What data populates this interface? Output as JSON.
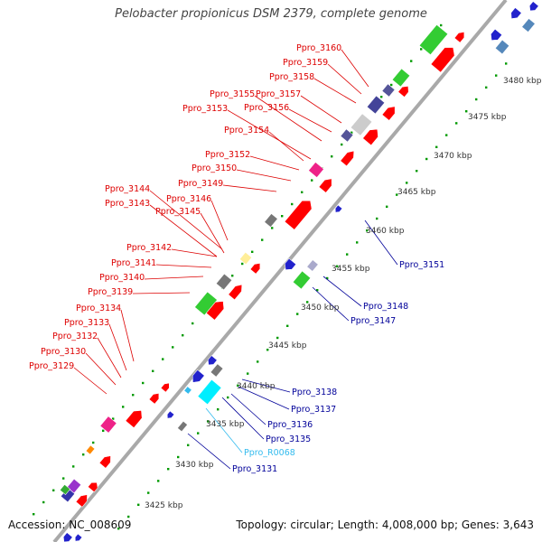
{
  "title": "Pelobacter propionicus DSM 2379, complete genome",
  "footer": {
    "accession": "Accession: NC_008609",
    "summary": "Topology: circular; Length: 4,008,000 bp; Genes: 3,643"
  },
  "colors": {
    "backbone": "#a9a9a9",
    "forward_label": "#dd0000",
    "reverse_label": "#000099",
    "rna_label": "#33bbee",
    "tick": "#009900"
  },
  "kbp_marks": [
    "3425 kbp",
    "3430 kbp",
    "3435 kbp",
    "3440 kbp",
    "3445 kbp",
    "3450 kbp",
    "3455 kbp",
    "3460 kbp",
    "3465 kbp",
    "3470 kbp",
    "3475 kbp",
    "3480 kbp"
  ],
  "forward_labels": [
    "Ppro_3160",
    "Ppro_3159",
    "Ppro_3158",
    "Ppro_3155",
    "Ppro_3157",
    "Ppro_3153",
    "Ppro_3156",
    "Ppro_3154",
    "Ppro_3152",
    "Ppro_3150",
    "Ppro_3149",
    "Ppro_3144",
    "Ppro_3146",
    "Ppro_3143",
    "Ppro_3145",
    "Ppro_3142",
    "Ppro_3141",
    "Ppro_3140",
    "Ppro_3139",
    "Ppro_3134",
    "Ppro_3133",
    "Ppro_3132",
    "Ppro_3130",
    "Ppro_3129"
  ],
  "reverse_labels": [
    "Ppro_3151",
    "Ppro_3148",
    "Ppro_3147",
    "Ppro_3138",
    "Ppro_3137",
    "Ppro_3136",
    "Ppro_3135",
    "Ppro_R0068",
    "Ppro_3131"
  ]
}
